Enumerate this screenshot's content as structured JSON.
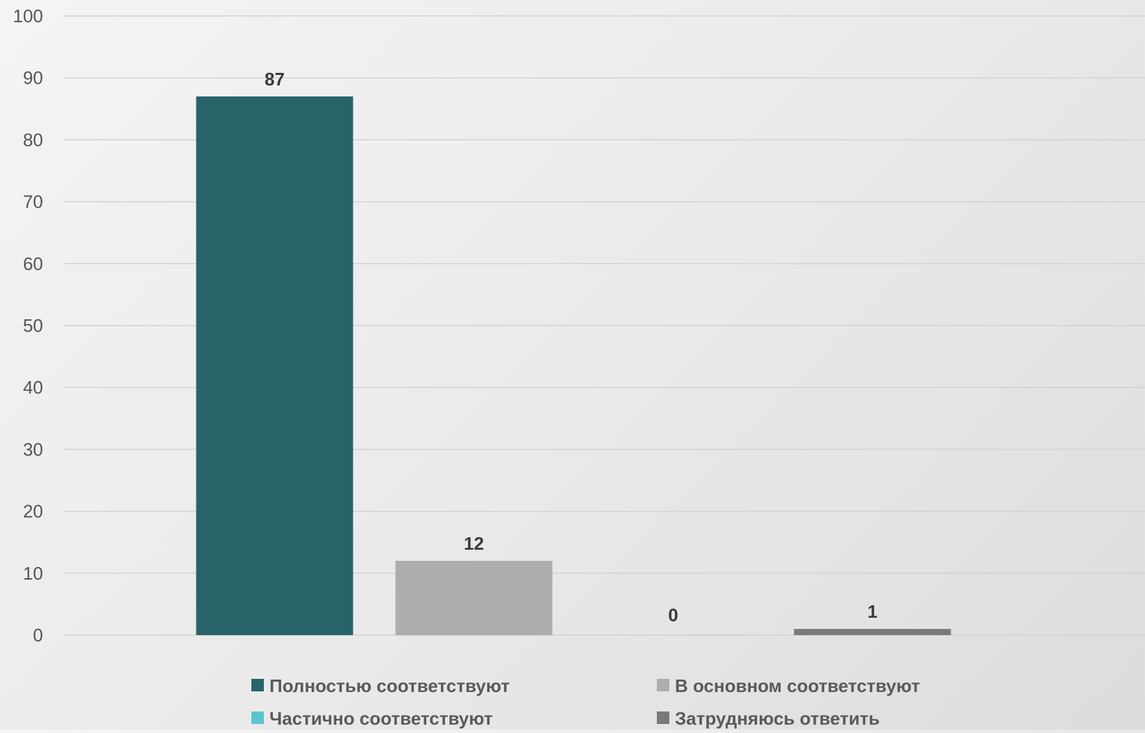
{
  "chart_data": {
    "type": "bar",
    "categories": [
      "Полностью соответствуют",
      "В основном соответствуют",
      "Частично соответствуют",
      "Затрудняюсь ответить"
    ],
    "values": [
      87,
      12,
      0,
      1
    ],
    "data_labels": [
      "87",
      "12",
      "0",
      "1"
    ],
    "colors": [
      "#27646a",
      "#adadad",
      "#5cc4cc",
      "#7a7a7a"
    ],
    "ylim": [
      0,
      100
    ],
    "y_ticks": [
      0,
      10,
      20,
      30,
      40,
      50,
      60,
      70,
      80,
      90,
      100
    ],
    "grid": true,
    "legend": {
      "position": "bottom",
      "entries": [
        "Полностью соответствуют",
        "В основном соответствуют",
        "Частично соответствуют",
        "Затрудняюсь ответить"
      ]
    }
  }
}
